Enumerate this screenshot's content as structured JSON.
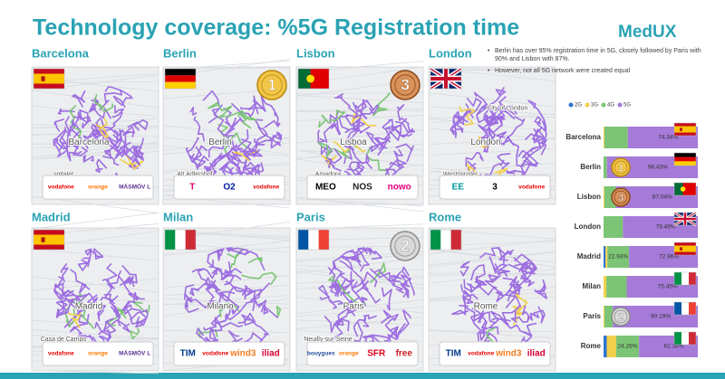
{
  "header": {
    "title": "Technology coverage: %5G Registration time",
    "logo": "MedUX"
  },
  "maps": [
    {
      "city": "Barcelona",
      "flag": "es",
      "medal": null,
      "places": [
        "Barcelona",
        "spitalet"
      ],
      "operators": [
        "vodafone",
        "orange",
        "MÁSMÓV L"
      ]
    },
    {
      "city": "Berlin",
      "flag": "de",
      "medal": 1,
      "places": [
        "Berlin",
        "Alt Adlershof"
      ],
      "operators": [
        "T",
        "O2",
        "vodafone"
      ]
    },
    {
      "city": "Lisbon",
      "flag": "pt",
      "medal": 3,
      "places": [
        "Lisboa",
        "Amadora"
      ],
      "operators": [
        "MEO",
        "NOS",
        "nowo"
      ]
    },
    {
      "city": "London",
      "flag": "gb",
      "medal": null,
      "places": [
        "London",
        "Westminster",
        "City of London"
      ],
      "operators": [
        "EE",
        "3",
        "vodafone"
      ]
    },
    {
      "city": "Madrid",
      "flag": "es",
      "medal": null,
      "places": [
        "Madrid",
        "Casa de Campo"
      ],
      "operators": [
        "vodafone",
        "orange",
        "MÁSMÓV L"
      ]
    },
    {
      "city": "Milan",
      "flag": "it",
      "medal": null,
      "places": [
        "Milano"
      ],
      "operators": [
        "TIM",
        "vodafone",
        "wind3",
        "iliad"
      ]
    },
    {
      "city": "Paris",
      "flag": "fr",
      "medal": 2,
      "places": [
        "Paris",
        "Neuilly-sur-Seine"
      ],
      "operators": [
        "bouygues",
        "orange",
        "SFR",
        "free"
      ]
    },
    {
      "city": "Rome",
      "flag": "it",
      "medal": null,
      "places": [
        "Rome"
      ],
      "operators": [
        "TIM",
        "vodafone",
        "wind3",
        "iliad"
      ]
    }
  ],
  "notes": [
    "Berlin has over 95% registration time in 5G, closely followed by Paris with 90% and Lisbon with 87%.",
    "However, not all 5G network were created equal"
  ],
  "chart_data": {
    "type": "bar",
    "orientation": "horizontal",
    "stacked": true,
    "categories": [
      "Barcelona",
      "Berlin",
      "Lisbon",
      "London",
      "Madrid",
      "Milan",
      "Paris",
      "Rome"
    ],
    "xlim": [
      0,
      100
    ],
    "flags": [
      "es",
      "de",
      "pt",
      "gb",
      "es",
      "it",
      "fr",
      "it"
    ],
    "medals": [
      null,
      1,
      3,
      null,
      null,
      null,
      2,
      null
    ],
    "series": [
      {
        "name": "2G",
        "color": "#2e75d0",
        "values": [
          0,
          0,
          0,
          0,
          2.11,
          0,
          0,
          3.36
        ]
      },
      {
        "name": "3G",
        "color": "#f2d04b",
        "values": [
          1,
          0,
          1,
          0,
          2,
          3,
          1,
          10
        ]
      },
      {
        "name": "4G",
        "color": "#7cc576",
        "values": [
          24.66,
          3.57,
          11.96,
          20.51,
          22.93,
          21.55,
          8.81,
          24.26
        ],
        "value_labels": [
          null,
          null,
          null,
          null,
          "22.93%",
          null,
          null,
          "24.26%"
        ]
      },
      {
        "name": "5G",
        "color": "#a57ad8",
        "values": [
          74.34,
          96.43,
          87.04,
          79.49,
          72.96,
          75.45,
          90.19,
          62.38
        ],
        "value_labels": [
          "74.34%",
          "96.43%",
          "87.04%",
          "79.49%",
          "72.96%",
          "75.45%",
          "90.19%",
          "62.38%"
        ]
      }
    ]
  }
}
